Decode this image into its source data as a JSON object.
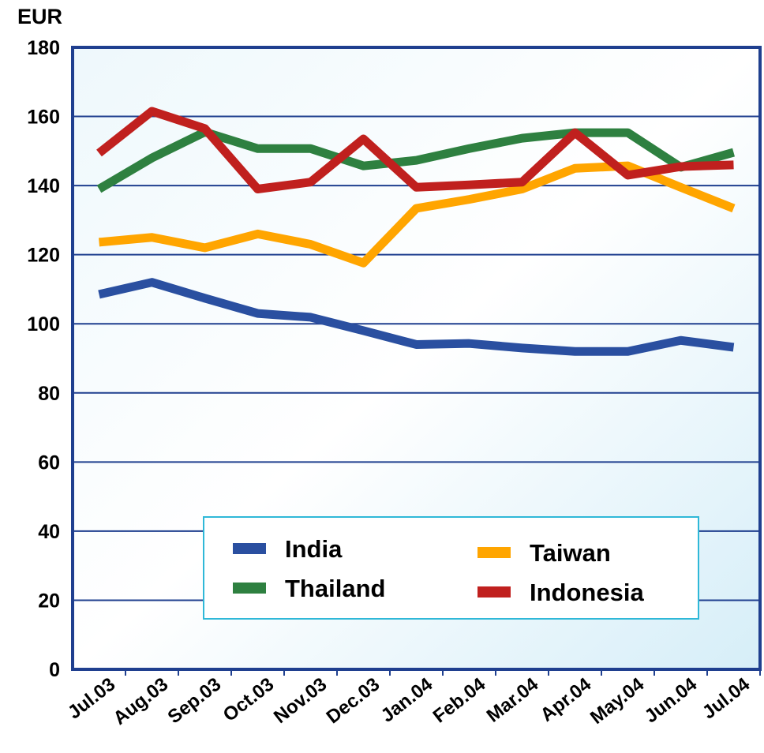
{
  "chart_data": {
    "type": "line",
    "y_label": "EUR",
    "categories": [
      "Jul.03",
      "Aug.03",
      "Sep.03",
      "Oct.03",
      "Nov.03",
      "Dec.03",
      "Jan.04",
      "Feb.04",
      "Mar.04",
      "Apr.04",
      "May.04",
      "Jun.04",
      "Jul.04"
    ],
    "series": [
      {
        "name": "India",
        "color": "#2a4fa0",
        "values": [
          108.5,
          112,
          107.4,
          103,
          101.9,
          98,
          94,
          94.3,
          93,
          92,
          92,
          95.2,
          93.2
        ]
      },
      {
        "name": "Taiwan",
        "color": "#ffa500",
        "values": [
          123.6,
          125,
          122,
          126,
          123,
          117.6,
          133.4,
          136,
          139,
          145,
          145.7,
          139.5,
          133.4
        ]
      },
      {
        "name": "Thailand",
        "color": "#2e8040",
        "values": [
          139,
          148,
          155.5,
          150.7,
          150.7,
          145.7,
          147.3,
          150.7,
          153.7,
          155.3,
          155.3,
          145.3,
          149.6
        ]
      },
      {
        "name": "Indonesia",
        "color": "#c0201e",
        "values": [
          149.4,
          161.5,
          156.5,
          139,
          141,
          153.5,
          139.5,
          140.2,
          141,
          155.3,
          143,
          145.5,
          146
        ]
      }
    ],
    "ylim": [
      0,
      180
    ],
    "yticks": [
      0,
      20,
      40,
      60,
      80,
      100,
      120,
      140,
      160,
      180
    ],
    "grid": true,
    "legend": "lower center"
  }
}
